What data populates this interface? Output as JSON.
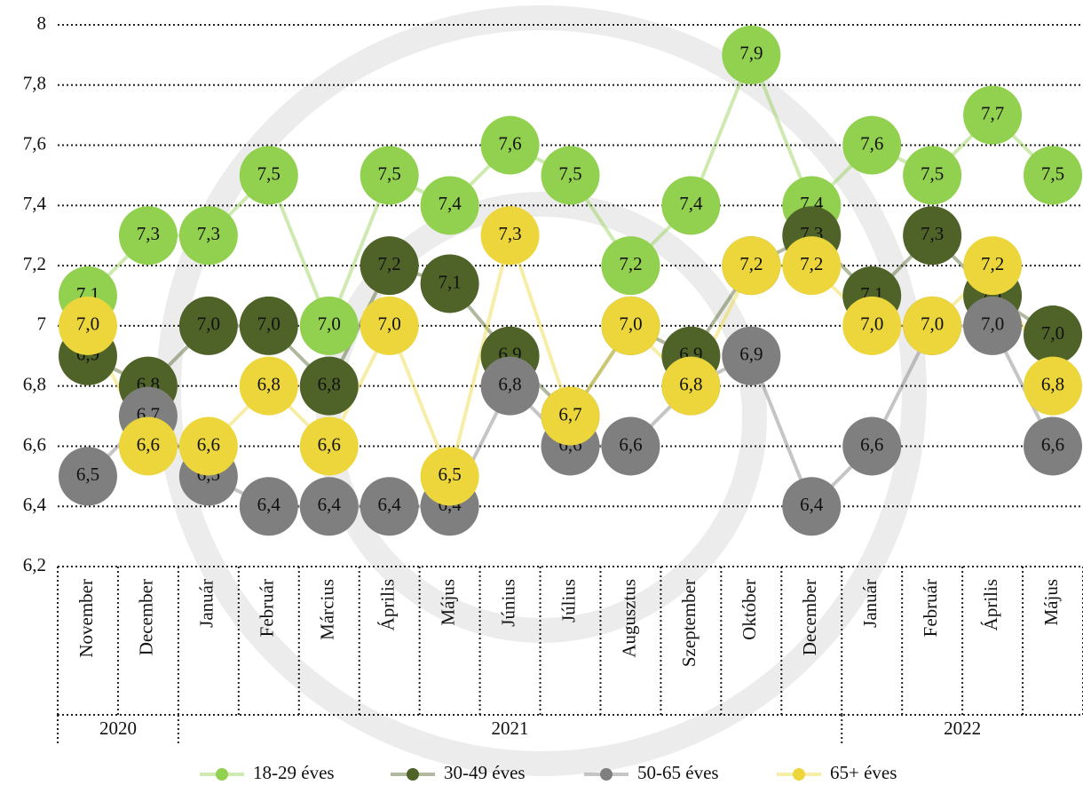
{
  "chart_data": {
    "type": "line",
    "categories": [
      "November",
      "December",
      "Január",
      "Február",
      "Március",
      "Április",
      "Május",
      "Június",
      "Július",
      "Augusztus",
      "Szeptember",
      "Október",
      "December",
      "Január",
      "Február",
      "Április",
      "Május"
    ],
    "year_groups": [
      {
        "label": "2020",
        "first": 0,
        "last": 1
      },
      {
        "label": "2021",
        "first": 2,
        "last": 12
      },
      {
        "label": "2022",
        "first": 13,
        "last": 16
      }
    ],
    "series": [
      {
        "name": "18-29 éves",
        "color": "#92d050",
        "values": [
          7.1,
          7.3,
          7.3,
          7.5,
          7.0,
          7.5,
          7.4,
          7.6,
          7.5,
          7.2,
          7.4,
          7.9,
          7.4,
          7.6,
          7.5,
          7.7,
          7.5
        ],
        "value_labels": [
          "7,1",
          "7,3",
          "7,3",
          "7,5",
          "7,0",
          "7,5",
          "7,4",
          "7,6",
          "7,5",
          "7,2",
          "7,4",
          "7,9",
          "7,4",
          "7,6",
          "7,5",
          "7,7",
          "7,5"
        ]
      },
      {
        "name": "30-49 éves",
        "color": "#4f6228",
        "values": [
          6.9,
          6.8,
          7.0,
          7.0,
          6.8,
          7.2,
          7.14,
          6.9,
          6.7,
          7.0,
          6.9,
          7.2,
          7.3,
          7.1,
          7.3,
          7.1,
          6.97
        ],
        "value_labels": [
          "6,9",
          "6,8",
          "7,0",
          "7,0",
          "6,8",
          "7,2",
          "7,1",
          "6,9",
          "6,7",
          "7,0",
          "6,9",
          "7,2",
          "7,3",
          "7,1",
          "7,3",
          "7,1",
          "7,0"
        ]
      },
      {
        "name": "50-65 éves",
        "color": "#7f7f7f",
        "values": [
          6.5,
          6.7,
          6.5,
          6.4,
          6.4,
          6.4,
          6.4,
          6.8,
          6.6,
          6.6,
          6.8,
          6.9,
          6.4,
          6.6,
          7.0,
          7.0,
          6.6
        ],
        "value_labels": [
          "6,5",
          "6,7",
          "6,5",
          "6,4",
          "6,4",
          "6,4",
          "6,4",
          "6,8",
          "6,6",
          "6,6",
          "6,8",
          "6,9",
          "6,4",
          "6,6",
          "7,0",
          "7,0",
          "6,6"
        ]
      },
      {
        "name": "65+ éves",
        "color": "#ecd63c",
        "values": [
          7.0,
          6.6,
          6.6,
          6.8,
          6.6,
          7.0,
          6.5,
          7.3,
          6.7,
          7.0,
          6.8,
          7.2,
          7.2,
          7.0,
          7.0,
          7.2,
          6.8
        ],
        "value_labels": [
          "7,0",
          "6,6",
          "6,6",
          "6,8",
          "6,6",
          "7,0",
          "6,5",
          "7,3",
          "6,7",
          "7,0",
          "6,8",
          "7,2",
          "7,2",
          "7,0",
          "7,0",
          "7,2",
          "6,8"
        ]
      }
    ],
    "ylim": [
      6.2,
      8
    ],
    "yticks": [
      {
        "value": 6.2,
        "label": "6,2"
      },
      {
        "value": 6.4,
        "label": "6,4"
      },
      {
        "value": 6.6,
        "label": "6,6"
      },
      {
        "value": 6.8,
        "label": "6,8"
      },
      7,
      {
        "value": 7.2,
        "label": "7,2"
      },
      {
        "value": 7.4,
        "label": "7,4"
      },
      {
        "value": 7.6,
        "label": "7,6"
      },
      {
        "value": 7.8,
        "label": "7,8"
      },
      8
    ],
    "grid": true
  }
}
